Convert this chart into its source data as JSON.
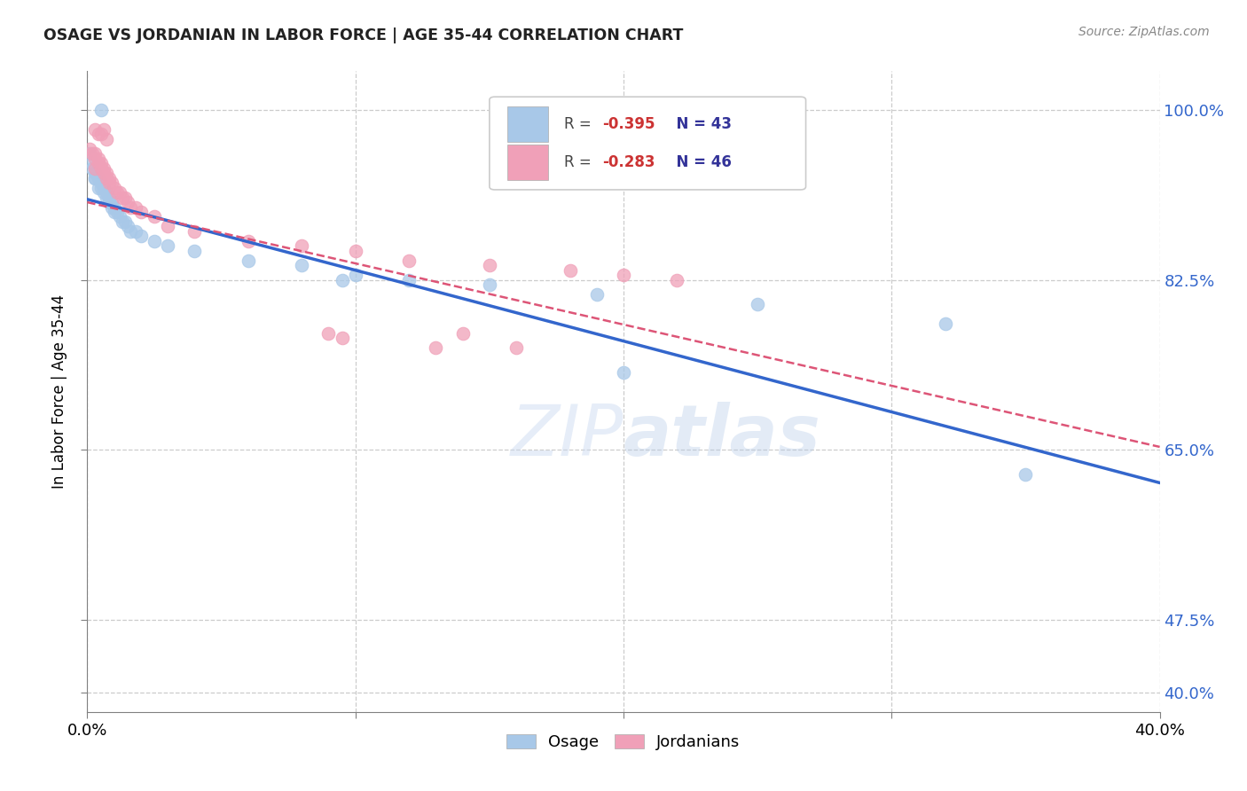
{
  "title": "OSAGE VS JORDANIAN IN LABOR FORCE | AGE 35-44 CORRELATION CHART",
  "source": "Source: ZipAtlas.com",
  "ylabel": "In Labor Force | Age 35-44",
  "xlim": [
    0.0,
    0.4
  ],
  "ylim": [
    0.38,
    1.04
  ],
  "ytick_positions": [
    0.4,
    0.475,
    0.65,
    0.825,
    1.0
  ],
  "ytick_labels": [
    "40.0%",
    "47.5%",
    "65.0%",
    "82.5%",
    "100.0%"
  ],
  "xtick_positions": [
    0.0,
    0.1,
    0.2,
    0.3,
    0.4
  ],
  "xtick_labels": [
    "0.0%",
    "",
    "",
    "",
    "40.0%"
  ],
  "osage_R": -0.395,
  "osage_N": 43,
  "jordan_R": -0.283,
  "jordan_N": 46,
  "osage_color": "#a8c8e8",
  "jordan_color": "#f0a0b8",
  "osage_line_color": "#3366cc",
  "jordan_line_color": "#dd5577",
  "background_color": "#ffffff",
  "osage_x": [
    0.001,
    0.002,
    0.002,
    0.003,
    0.003,
    0.003,
    0.004,
    0.004,
    0.005,
    0.005,
    0.006,
    0.006,
    0.007,
    0.007,
    0.008,
    0.008,
    0.009,
    0.009,
    0.01,
    0.01,
    0.011,
    0.012,
    0.013,
    0.014,
    0.015,
    0.016,
    0.018,
    0.02,
    0.025,
    0.03,
    0.04,
    0.06,
    0.08,
    0.1,
    0.12,
    0.15,
    0.19,
    0.25,
    0.32,
    0.005,
    0.095,
    0.2,
    0.35
  ],
  "osage_y": [
    0.955,
    0.945,
    0.94,
    0.935,
    0.93,
    0.93,
    0.93,
    0.92,
    0.925,
    0.92,
    0.92,
    0.915,
    0.915,
    0.91,
    0.91,
    0.905,
    0.905,
    0.9,
    0.9,
    0.895,
    0.895,
    0.89,
    0.885,
    0.885,
    0.88,
    0.875,
    0.875,
    0.87,
    0.865,
    0.86,
    0.855,
    0.845,
    0.84,
    0.83,
    0.825,
    0.82,
    0.81,
    0.8,
    0.78,
    1.0,
    0.825,
    0.73,
    0.625
  ],
  "jordan_x": [
    0.001,
    0.002,
    0.003,
    0.003,
    0.003,
    0.004,
    0.004,
    0.005,
    0.005,
    0.006,
    0.006,
    0.007,
    0.007,
    0.008,
    0.008,
    0.009,
    0.01,
    0.011,
    0.012,
    0.013,
    0.014,
    0.015,
    0.016,
    0.018,
    0.02,
    0.025,
    0.03,
    0.04,
    0.06,
    0.08,
    0.1,
    0.12,
    0.15,
    0.18,
    0.2,
    0.22,
    0.003,
    0.004,
    0.005,
    0.006,
    0.007,
    0.095,
    0.13,
    0.16,
    0.14,
    0.09
  ],
  "jordan_y": [
    0.96,
    0.955,
    0.955,
    0.95,
    0.94,
    0.95,
    0.945,
    0.945,
    0.94,
    0.94,
    0.935,
    0.935,
    0.93,
    0.93,
    0.925,
    0.925,
    0.92,
    0.915,
    0.915,
    0.91,
    0.91,
    0.905,
    0.9,
    0.9,
    0.895,
    0.89,
    0.88,
    0.875,
    0.865,
    0.86,
    0.855,
    0.845,
    0.84,
    0.835,
    0.83,
    0.825,
    0.98,
    0.975,
    0.975,
    0.98,
    0.97,
    0.765,
    0.755,
    0.755,
    0.77,
    0.77
  ]
}
